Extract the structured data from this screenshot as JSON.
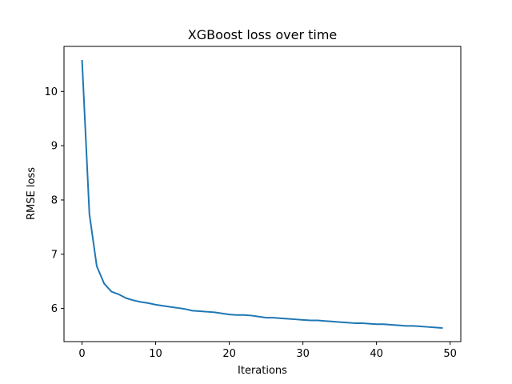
{
  "chart_data": {
    "type": "line",
    "title": "XGBoost loss over time",
    "xlabel": "Iterations",
    "ylabel": "RMSE loss",
    "xlim": [
      -2.45,
      51.45
    ],
    "ylim": [
      5.39,
      10.83
    ],
    "xticks": [
      0,
      10,
      20,
      30,
      40,
      50
    ],
    "yticks": [
      6,
      7,
      8,
      9,
      10
    ],
    "grid": false,
    "series": [
      {
        "color": "#1f77b4",
        "x": [
          0,
          1,
          2,
          3,
          4,
          5,
          6,
          7,
          8,
          9,
          10,
          11,
          12,
          13,
          14,
          15,
          16,
          17,
          18,
          19,
          20,
          21,
          22,
          23,
          24,
          25,
          26,
          27,
          28,
          29,
          30,
          31,
          32,
          33,
          34,
          35,
          36,
          37,
          38,
          39,
          40,
          41,
          42,
          43,
          44,
          45,
          46,
          47,
          48,
          49
        ],
        "y": [
          10.58,
          7.74,
          6.78,
          6.46,
          6.31,
          6.26,
          6.19,
          6.15,
          6.12,
          6.1,
          6.07,
          6.05,
          6.03,
          6.01,
          5.99,
          5.96,
          5.95,
          5.94,
          5.93,
          5.91,
          5.89,
          5.88,
          5.88,
          5.87,
          5.85,
          5.83,
          5.83,
          5.82,
          5.81,
          5.8,
          5.79,
          5.78,
          5.78,
          5.77,
          5.76,
          5.75,
          5.74,
          5.73,
          5.73,
          5.72,
          5.71,
          5.71,
          5.7,
          5.69,
          5.68,
          5.68,
          5.67,
          5.66,
          5.65,
          5.64
        ]
      }
    ]
  }
}
